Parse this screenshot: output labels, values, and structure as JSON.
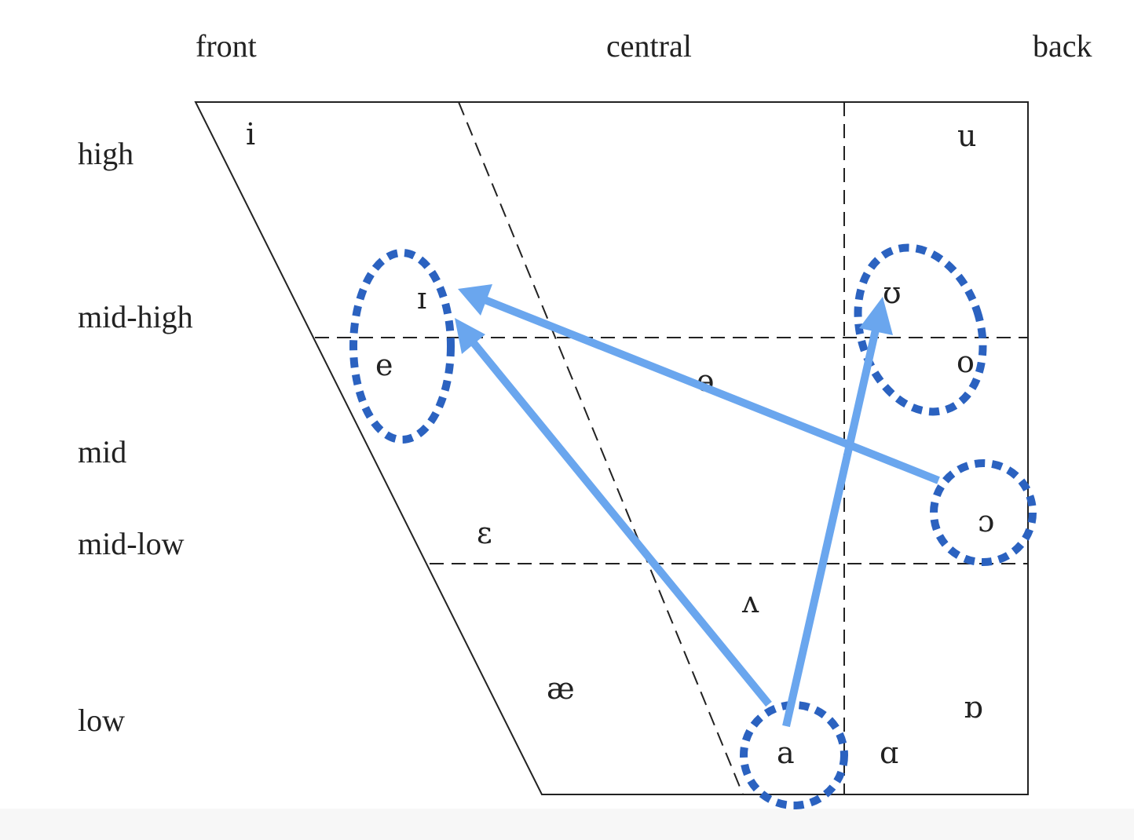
{
  "columns": {
    "front": "front",
    "central": "central",
    "back": "back"
  },
  "rows": {
    "high": "high",
    "mid_high": "mid-high",
    "mid": "mid",
    "mid_low": "mid-low",
    "low": "low"
  },
  "vowels": {
    "i": "i",
    "u": "u",
    "I": "ɪ",
    "U": "ʊ",
    "e": "e",
    "o": "o",
    "schwa": "ɘ",
    "epsilon": "ɛ",
    "open_o": "ɔ",
    "wedge": "ʌ",
    "ash": "æ",
    "a": "a",
    "alpha": "ɑ",
    "turned_alpha": "ɒ"
  },
  "colors": {
    "chart_line": "#222222",
    "circle": "#2b62c0",
    "arrow": "#6aa6ee"
  }
}
